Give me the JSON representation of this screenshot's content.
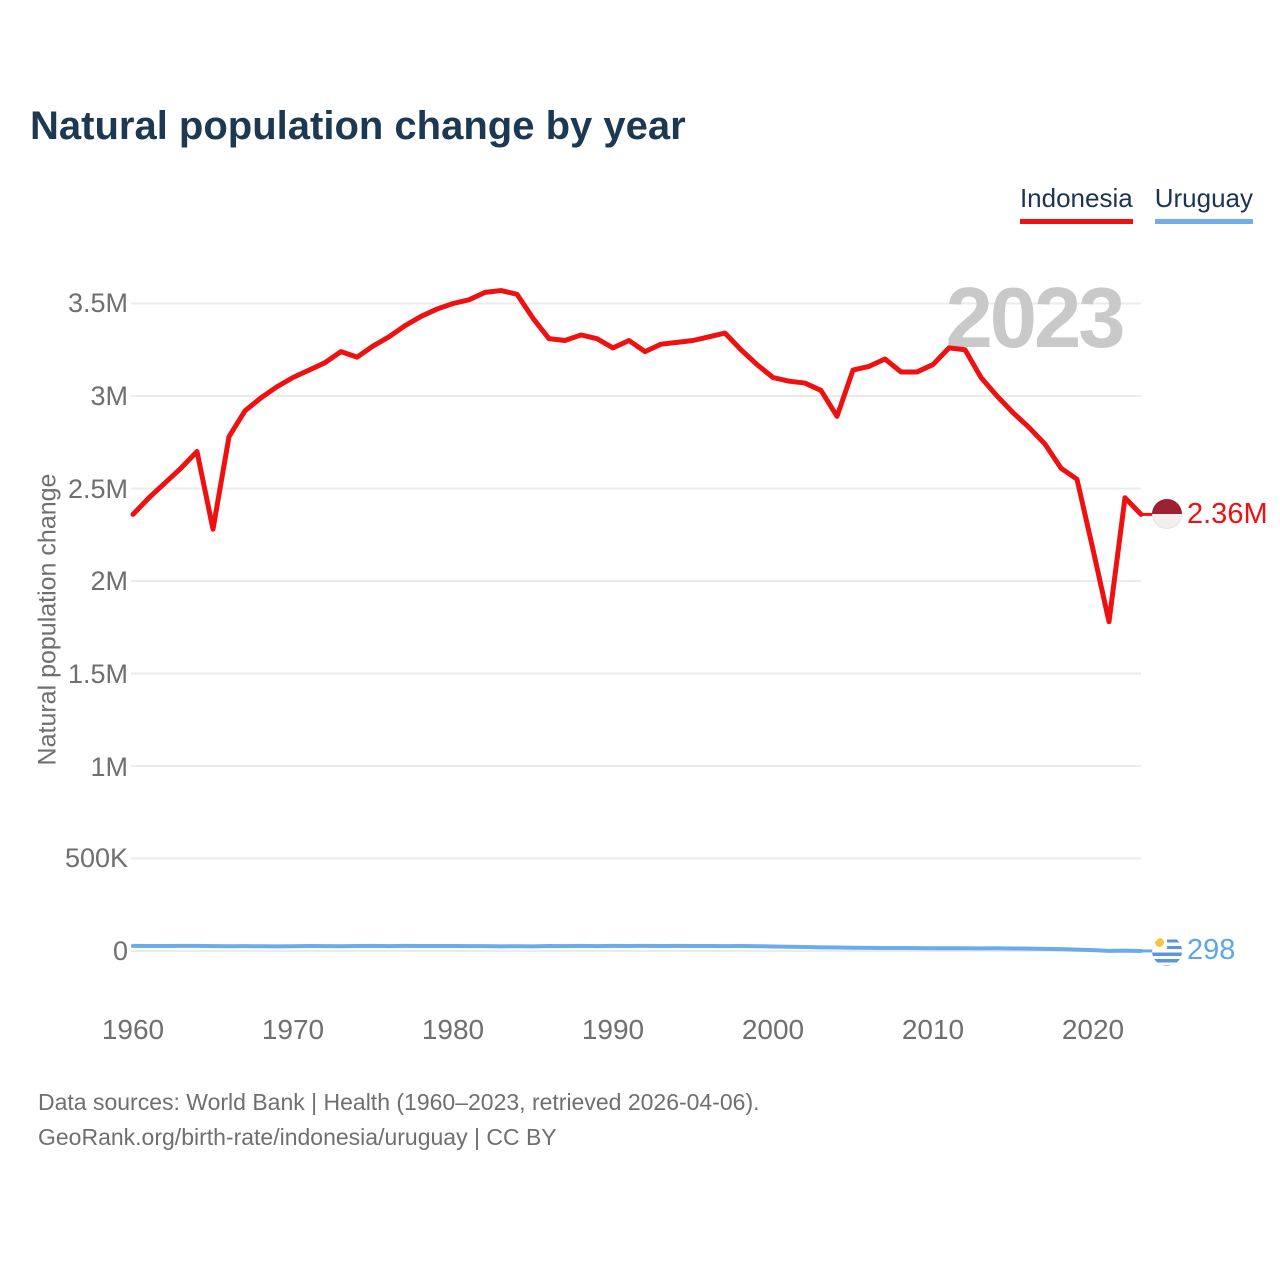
{
  "header": {
    "title": "Natural population change by year"
  },
  "legend": {
    "items": [
      {
        "label": "Indonesia",
        "color": "#ee1111"
      },
      {
        "label": "Uruguay",
        "color": "#74aee9"
      }
    ]
  },
  "watermark": "2023",
  "axes": {
    "y_title": "Natural population change",
    "y_ticks": [
      {
        "label": "3.5M",
        "value": 3500000
      },
      {
        "label": "3M",
        "value": 3000000
      },
      {
        "label": "2.5M",
        "value": 2500000
      },
      {
        "label": "2M",
        "value": 2000000
      },
      {
        "label": "1.5M",
        "value": 1500000
      },
      {
        "label": "1M",
        "value": 1000000
      },
      {
        "label": "500K",
        "value": 500000
      },
      {
        "label": "0",
        "value": 0
      }
    ],
    "x_ticks": [
      {
        "label": "1960",
        "year": 1960
      },
      {
        "label": "1970",
        "year": 1970
      },
      {
        "label": "1980",
        "year": 1980
      },
      {
        "label": "1990",
        "year": 1990
      },
      {
        "label": "2000",
        "year": 2000
      },
      {
        "label": "2010",
        "year": 2010
      },
      {
        "label": "2020",
        "year": 2020
      }
    ]
  },
  "annotations": {
    "indonesia_end": {
      "text": "2.36M",
      "color": "#ee1111"
    },
    "uruguay_end": {
      "text": "298",
      "color": "#5ea5ea"
    }
  },
  "footer": {
    "line1": "Data sources: World Bank | Health (1960–2023, retrieved 2026-04-06).",
    "line2": "GeoRank.org/birth-rate/indonesia/uruguay | CC BY"
  },
  "chart_data": {
    "type": "line",
    "title": "Natural population change by year",
    "xlabel": "",
    "ylabel": "Natural population change",
    "xlim": [
      1960,
      2023
    ],
    "ylim": [
      0,
      3700000
    ],
    "grid": "horizontal",
    "legend_position": "top-right",
    "current_year_marker": "2023",
    "x": [
      1960,
      1961,
      1962,
      1963,
      1964,
      1965,
      1966,
      1967,
      1968,
      1969,
      1970,
      1971,
      1972,
      1973,
      1974,
      1975,
      1976,
      1977,
      1978,
      1979,
      1980,
      1981,
      1982,
      1983,
      1984,
      1985,
      1986,
      1987,
      1988,
      1989,
      1990,
      1991,
      1992,
      1993,
      1994,
      1995,
      1996,
      1997,
      1998,
      1999,
      2000,
      2001,
      2002,
      2003,
      2004,
      2005,
      2006,
      2007,
      2008,
      2009,
      2010,
      2011,
      2012,
      2013,
      2014,
      2015,
      2016,
      2017,
      2018,
      2019,
      2020,
      2021,
      2022,
      2023
    ],
    "series": [
      {
        "name": "Indonesia",
        "color": "#ee1111",
        "end_label": "2.36M",
        "values": [
          2360000,
          2450000,
          2530000,
          2610000,
          2700000,
          2280000,
          2780000,
          2920000,
          2990000,
          3050000,
          3100000,
          3140000,
          3180000,
          3240000,
          3210000,
          3270000,
          3320000,
          3380000,
          3430000,
          3470000,
          3500000,
          3520000,
          3560000,
          3570000,
          3550000,
          3420000,
          3310000,
          3300000,
          3330000,
          3310000,
          3260000,
          3300000,
          3240000,
          3280000,
          3290000,
          3300000,
          3320000,
          3340000,
          3250000,
          3170000,
          3100000,
          3080000,
          3070000,
          3030000,
          2890000,
          3140000,
          3160000,
          3200000,
          3130000,
          3130000,
          3170000,
          3260000,
          3250000,
          3100000,
          3000000,
          2910000,
          2830000,
          2740000,
          2610000,
          2550000,
          2170000,
          1780000,
          2450000,
          2360000
        ]
      },
      {
        "name": "Uruguay",
        "color": "#6aace9",
        "end_label": "298",
        "values": [
          27400,
          27100,
          26800,
          27600,
          27900,
          26500,
          25800,
          26200,
          25400,
          25100,
          25600,
          26900,
          26300,
          25700,
          27200,
          27800,
          26400,
          27500,
          26800,
          27300,
          26900,
          26500,
          26100,
          25300,
          25800,
          25200,
          26700,
          26100,
          27400,
          26600,
          27800,
          27200,
          27900,
          26800,
          27500,
          26900,
          27100,
          26400,
          26800,
          25900,
          24600,
          23200,
          21500,
          19800,
          18900,
          17600,
          16800,
          15900,
          16300,
          15700,
          15200,
          14800,
          14900,
          14200,
          14600,
          13800,
          12900,
          11400,
          9800,
          7600,
          4900,
          500,
          1800,
          298
        ]
      }
    ]
  }
}
